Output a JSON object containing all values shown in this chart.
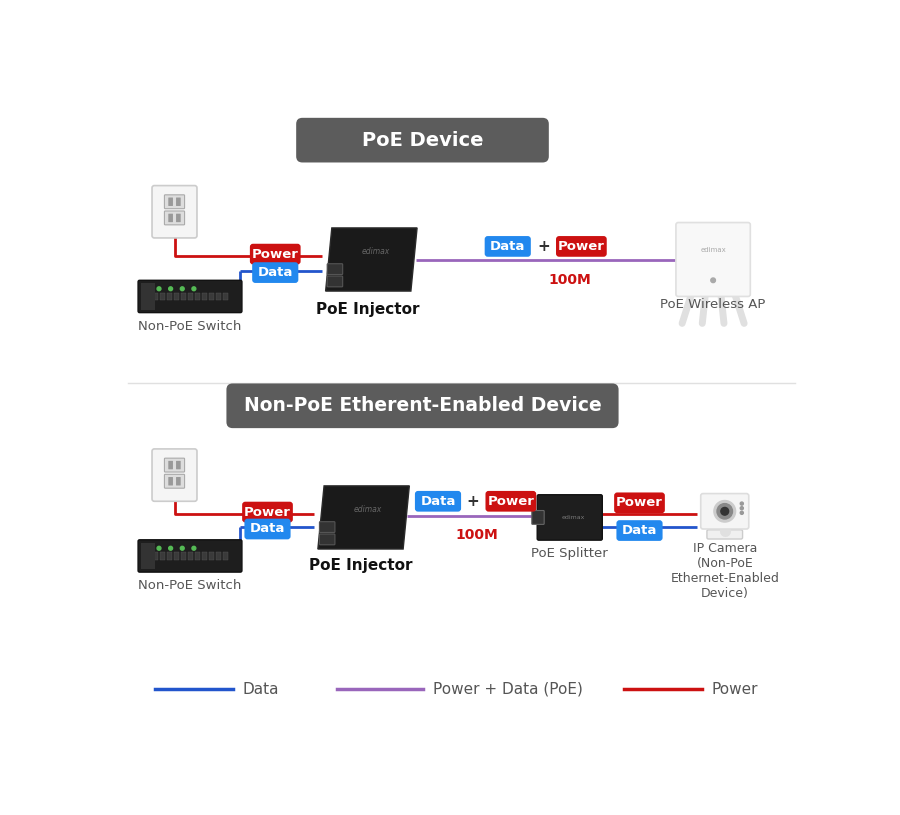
{
  "bg_color": "#ffffff",
  "title1": "PoE Device",
  "title2": "Non-PoE Etherent-Enabled Device",
  "title_bg": "#5c5c5c",
  "title_fg": "#ffffff",
  "color_data": "#2255cc",
  "color_power": "#cc1111",
  "color_poe": "#9966bb",
  "label_data_bg": "#2288ee",
  "label_power_bg": "#cc1111",
  "label_fg": "#ffffff",
  "legend_data_label": "Data",
  "legend_poe_label": "Power + Data (PoE)",
  "legend_power_label": "Power",
  "100m_label": "100M",
  "100m_color": "#cc1111",
  "device_label_color": "#555555",
  "bold_label_color": "#111111"
}
